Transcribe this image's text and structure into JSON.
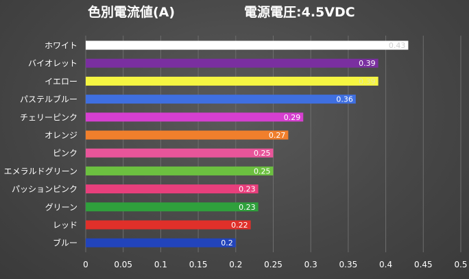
{
  "chart_data": {
    "type": "bar",
    "orientation": "horizontal",
    "title": "色別電流値(A)",
    "subtitle": "電源電圧:4.5VDC",
    "categories": [
      "ホワイト",
      "バイオレット",
      "イエロー",
      "パステルブルー",
      "チェリーピンク",
      "オレンジ",
      "ピンク",
      "エメラルドグリーン",
      "パッションピンク",
      "グリーン",
      "レッド",
      "ブルー"
    ],
    "values": [
      0.43,
      0.39,
      0.39,
      0.36,
      0.29,
      0.27,
      0.25,
      0.25,
      0.23,
      0.23,
      0.22,
      0.2
    ],
    "value_labels": [
      "0.43",
      "0.39",
      "0.39",
      "0.36",
      "0.29",
      "0.27",
      "0.25",
      "0.25",
      "0.23",
      "0.23",
      "0.22",
      "0.2"
    ],
    "bar_colors": [
      "#ffffff",
      "#7a2fa0",
      "#f5f542",
      "#3f6fe0",
      "#d63fd0",
      "#f07f2c",
      "#e8559a",
      "#6cc040",
      "#e83f7c",
      "#2fa03c",
      "#e0302a",
      "#2244bb"
    ],
    "label_colors": [
      "#cfcfcf",
      "#ffffff",
      "#e6e6a0",
      "#ffffff",
      "#ffffff",
      "#ffffff",
      "#ffffff",
      "#ffffff",
      "#ffffff",
      "#ffffff",
      "#ffffff",
      "#ffffff"
    ],
    "xlim": [
      0,
      0.5
    ],
    "xticks": [
      "0",
      "0.05",
      "0.1",
      "0.15",
      "0.2",
      "0.25",
      "0.3",
      "0.35",
      "0.4",
      "0.45",
      "0.5"
    ],
    "grid": true,
    "legend": "none"
  }
}
